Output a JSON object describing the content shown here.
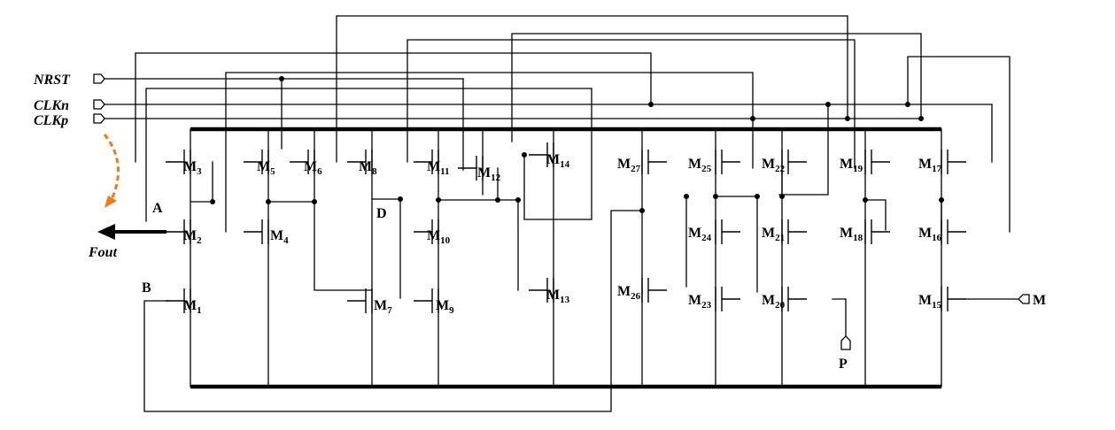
{
  "diagram": {
    "inputs": [
      {
        "label": "NRST"
      },
      {
        "label": "CLKn"
      },
      {
        "label": "CLKp"
      }
    ],
    "output_label": "Fout",
    "nodes": {
      "A": "A",
      "B": "B",
      "D": "D"
    },
    "ports": {
      "M": "M",
      "P": "P"
    },
    "transistors": [
      {
        "id": "M3"
      },
      {
        "id": "M2"
      },
      {
        "id": "M1"
      },
      {
        "id": "M5"
      },
      {
        "id": "M4"
      },
      {
        "id": "M6"
      },
      {
        "id": "M8"
      },
      {
        "id": "M7"
      },
      {
        "id": "M11"
      },
      {
        "id": "M10"
      },
      {
        "id": "M9"
      },
      {
        "id": "M12"
      },
      {
        "id": "M14"
      },
      {
        "id": "M13"
      },
      {
        "id": "M27"
      },
      {
        "id": "M26"
      },
      {
        "id": "M25"
      },
      {
        "id": "M24"
      },
      {
        "id": "M23"
      },
      {
        "id": "M22"
      },
      {
        "id": "M21"
      },
      {
        "id": "M20"
      },
      {
        "id": "M19"
      },
      {
        "id": "M18"
      },
      {
        "id": "M17"
      },
      {
        "id": "M16"
      },
      {
        "id": "M15"
      }
    ],
    "colors": {
      "wire": "#000000",
      "arrow_hint": "#f07a1a"
    }
  }
}
